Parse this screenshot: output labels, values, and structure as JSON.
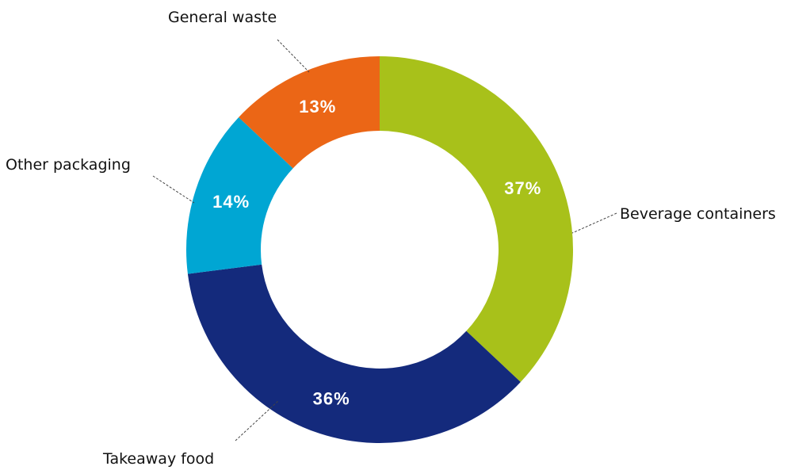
{
  "chart_data": {
    "type": "pie",
    "variant": "donut",
    "title": "",
    "categories": [
      "Beverage containers",
      "Takeaway food",
      "Other packaging",
      "General waste"
    ],
    "values": [
      37,
      36,
      14,
      13
    ],
    "value_labels": [
      "37%",
      "36%",
      "14%",
      "13%"
    ],
    "colors": [
      "#a8c11a",
      "#142a7c",
      "#00a6d3",
      "#eb6616"
    ],
    "label_color": "#ffffff",
    "start": "top, clockwise",
    "legend": "none (outside labels with leader lines)"
  }
}
